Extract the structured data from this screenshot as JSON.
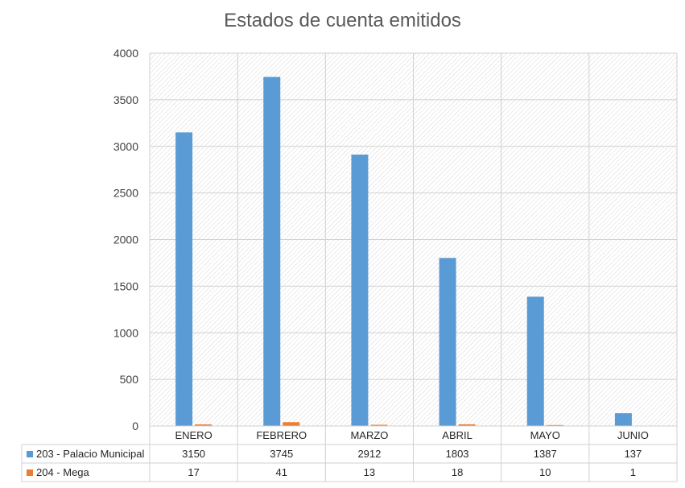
{
  "chart_data": {
    "type": "bar",
    "title": "Estados de cuenta emitidos",
    "categories": [
      "ENERO",
      "FEBRERO",
      "MARZO",
      "ABRIL",
      "MAYO",
      "JUNIO"
    ],
    "series": [
      {
        "name": "203 - Palacio Municipal",
        "color": "#5b9bd5",
        "values": [
          3150,
          3745,
          2912,
          1803,
          1387,
          137
        ]
      },
      {
        "name": "204 - Mega",
        "color": "#ed7d31",
        "values": [
          17,
          41,
          13,
          18,
          10,
          1
        ]
      }
    ],
    "ylim": [
      0,
      4000
    ],
    "yticks": [
      0,
      500,
      1000,
      1500,
      2000,
      2500,
      3000,
      3500,
      4000
    ],
    "grid": true,
    "legend": "data-table"
  }
}
